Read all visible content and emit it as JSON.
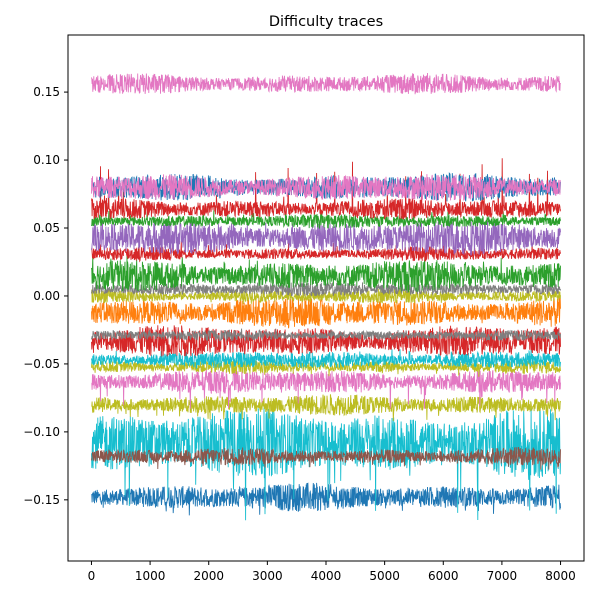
{
  "chart_data": {
    "type": "line",
    "title": "Difficulty traces",
    "xlabel": "",
    "ylabel": "",
    "xlim": [
      -400,
      8400
    ],
    "ylim": [
      -0.195,
      0.192
    ],
    "x_range": [
      0,
      8000
    ],
    "xticks": [
      0,
      1000,
      2000,
      3000,
      4000,
      5000,
      6000,
      7000,
      8000
    ],
    "yticks": [
      -0.15,
      -0.1,
      -0.05,
      0.0,
      0.05,
      0.1,
      0.15
    ],
    "ytick_labels": [
      "−0.15",
      "−0.10",
      "−0.05",
      "0.00",
      "0.05",
      "0.10",
      "0.15"
    ],
    "grid": false,
    "legend": "none",
    "series": [
      {
        "color": "#1f77b4",
        "center": -0.148,
        "amplitude": 0.008,
        "spike": 0.014,
        "spike_dir": -1
      },
      {
        "color": "#17becf",
        "center": -0.108,
        "amplitude": 0.02,
        "spike": 0.06,
        "spike_dir": -1
      },
      {
        "color": "#8c564b",
        "center": -0.118,
        "amplitude": 0.005,
        "spike": 0.01,
        "spike_dir": -1
      },
      {
        "color": "#bcbd22",
        "center": -0.08,
        "amplitude": 0.006,
        "spike": 0.012,
        "spike_dir": -1
      },
      {
        "color": "#e377c2",
        "center": -0.063,
        "amplitude": 0.007,
        "spike": 0.02,
        "spike_dir": -1
      },
      {
        "color": "#bcbd22",
        "center": -0.052,
        "amplitude": 0.004,
        "spike": 0.008,
        "spike_dir": -1
      },
      {
        "color": "#17becf",
        "center": -0.047,
        "amplitude": 0.005,
        "spike": 0.008,
        "spike_dir": 1
      },
      {
        "color": "#d62728",
        "center": -0.033,
        "amplitude": 0.009,
        "spike": 0.01,
        "spike_dir": -1
      },
      {
        "color": "#7f7f7f",
        "center": -0.029,
        "amplitude": 0.003,
        "spike": 0.005,
        "spike_dir": 1
      },
      {
        "color": "#ff7f0e",
        "center": -0.012,
        "amplitude": 0.009,
        "spike": 0.01,
        "spike_dir": -1
      },
      {
        "color": "#bcbd22",
        "center": 0.0,
        "amplitude": 0.004,
        "spike": 0.006,
        "spike_dir": -1
      },
      {
        "color": "#7f7f7f",
        "center": 0.005,
        "amplitude": 0.004,
        "spike": 0.005,
        "spike_dir": 1
      },
      {
        "color": "#2ca02c",
        "center": 0.015,
        "amplitude": 0.009,
        "spike": 0.015,
        "spike_dir": 1
      },
      {
        "color": "#d62728",
        "center": 0.031,
        "amplitude": 0.004,
        "spike": 0.01,
        "spike_dir": 1
      },
      {
        "color": "#9467bd",
        "center": 0.043,
        "amplitude": 0.01,
        "spike": 0.012,
        "spike_dir": 1
      },
      {
        "color": "#2ca02c",
        "center": 0.055,
        "amplitude": 0.004,
        "spike": 0.008,
        "spike_dir": 1
      },
      {
        "color": "#d62728",
        "center": 0.064,
        "amplitude": 0.006,
        "spike": 0.04,
        "spike_dir": 1
      },
      {
        "color": "#1f77b4",
        "center": 0.08,
        "amplitude": 0.008,
        "spike": 0.008,
        "spike_dir": 1
      },
      {
        "color": "#e377c2",
        "center": 0.08,
        "amplitude": 0.008,
        "spike": 0.006,
        "spike_dir": 1
      },
      {
        "color": "#e377c2",
        "center": 0.156,
        "amplitude": 0.006,
        "spike": 0.004,
        "spike_dir": 1
      }
    ]
  }
}
